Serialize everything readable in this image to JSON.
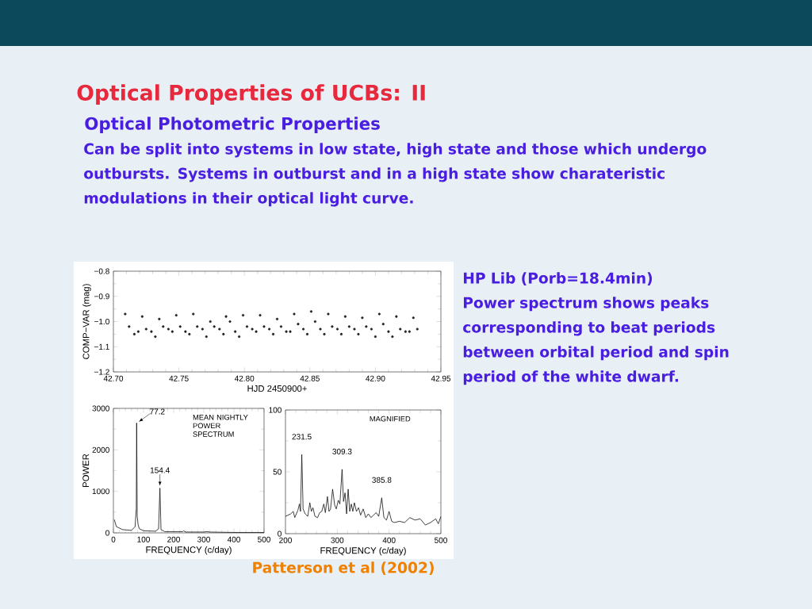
{
  "chart_data": [
    {
      "type": "scatter",
      "title": "Optical Properties of UCBs: II",
      "subtitle": "Optical Photometric Properties",
      "annotations": [
        "Can be split into systems in low state, high state and those which undergo outbursts. Systems in outburst and in a high state show charateristic modulations in their optical light curve.",
        "HP Lib (Porb=18.4min)",
        "Power spectrum shows peaks corresponding to beat periods between orbital period and spin period of the white dwarf.",
        "Patterson et al (2002)"
      ],
      "xlabel": "HJD  2450900+",
      "ylabel": "COMP−VAR  (mag)",
      "color": "#222222",
      "x": [
        42.709,
        42.712,
        42.716,
        42.719,
        42.722,
        42.725,
        42.729,
        42.732,
        42.735,
        42.738,
        42.742,
        42.745,
        42.748,
        42.751,
        42.755,
        42.758,
        42.761,
        42.764,
        42.768,
        42.771,
        42.774,
        42.777,
        42.781,
        42.784,
        42.786,
        42.789,
        42.793,
        42.796,
        42.799,
        42.802,
        42.806,
        42.809,
        42.812,
        42.815,
        42.819,
        42.822,
        42.825,
        42.828,
        42.832,
        42.835,
        42.838,
        42.841,
        42.845,
        42.848,
        42.851,
        42.854,
        42.858,
        42.861,
        42.864,
        42.867,
        42.871,
        42.874,
        42.877,
        42.88,
        42.884,
        42.887,
        42.89,
        42.893,
        42.897,
        42.9,
        42.903,
        42.906,
        42.91,
        42.913,
        42.916,
        42.919,
        42.923,
        42.926,
        42.929,
        42.932
      ],
      "values": [
        -0.97,
        -1.02,
        -1.05,
        -1.04,
        -0.98,
        -1.03,
        -1.04,
        -1.06,
        -0.99,
        -1.02,
        -1.03,
        -1.04,
        -0.975,
        -1.02,
        -1.04,
        -1.05,
        -0.97,
        -1.02,
        -1.03,
        -1.06,
        -1.0,
        -1.02,
        -1.03,
        -1.05,
        -0.98,
        -1.0,
        -1.04,
        -1.06,
        -0.975,
        -1.02,
        -1.03,
        -1.04,
        -0.975,
        -1.02,
        -1.03,
        -1.05,
        -0.99,
        -1.02,
        -1.04,
        -1.04,
        -0.97,
        -1.01,
        -1.03,
        -1.05,
        -0.96,
        -1.0,
        -1.03,
        -1.05,
        -0.97,
        -1.02,
        -1.03,
        -1.05,
        -0.98,
        -1.02,
        -1.03,
        -1.05,
        -0.985,
        -1.02,
        -1.03,
        -1.06,
        -0.97,
        -1.01,
        -1.04,
        -1.06,
        -0.98,
        -1.03,
        -1.04,
        -1.04,
        -0.985,
        -1.03
      ],
      "xlim": [
        42.7,
        42.95
      ],
      "xticks": [
        {
          "value": 42.7,
          "label": "42.70"
        },
        {
          "value": 42.75,
          "label": "42.75"
        },
        {
          "value": 42.8,
          "label": "42.80"
        },
        {
          "value": 42.85,
          "label": "42.85"
        },
        {
          "value": 42.9,
          "label": "42.90"
        },
        {
          "value": 42.95,
          "label": "42.95"
        }
      ],
      "ylim": [
        -1.2,
        -0.8
      ],
      "yticks": [
        {
          "value": -1.2,
          "label": "−1.2"
        },
        {
          "value": -1.1,
          "label": "−1.1"
        },
        {
          "value": -1.0,
          "label": "−1.0"
        },
        {
          "value": -0.9,
          "label": "−0.9"
        },
        {
          "value": -0.8,
          "label": "−0.8"
        }
      ]
    },
    {
      "type": "line",
      "xlabel": "FREQUENCY  (c/day)",
      "ylabel": "POWER",
      "color": "#111111",
      "annotations": [
        "MEAN NIGHTLY POWER SPECTRUM",
        {
          "text": "77.2",
          "x": 77.2,
          "y": 2650
        },
        {
          "text": "154.4",
          "x": 154.4,
          "y": 1080
        }
      ],
      "x": [
        3,
        10,
        30,
        60,
        72,
        76,
        77.2,
        79,
        82,
        86,
        100,
        140,
        150,
        154.4,
        158,
        170,
        230,
        233,
        240,
        300,
        310,
        320,
        400,
        500
      ],
      "values": [
        320,
        150,
        80,
        60,
        150,
        600,
        2650,
        400,
        200,
        100,
        50,
        40,
        100,
        1080,
        80,
        30,
        30,
        50,
        20,
        20,
        30,
        20,
        10,
        10
      ],
      "xlim": [
        0,
        500
      ],
      "xticks": [
        0,
        100,
        200,
        300,
        400,
        500
      ],
      "ylim": [
        0,
        3000
      ],
      "yticks": [
        0,
        1000,
        2000,
        3000
      ]
    },
    {
      "type": "line",
      "xlabel": "FREQUENCY  (c/day)",
      "color": "#111111",
      "annotations": [
        "MAGNIFIED",
        {
          "text": "231.5",
          "x": 231.5,
          "y": 64
        },
        {
          "text": "309.3",
          "x": 309.3,
          "y": 52
        },
        {
          "text": "385.8",
          "x": 385.8,
          "y": 29
        }
      ],
      "x": [
        200,
        210,
        215,
        218,
        224,
        227,
        229,
        231.5,
        234,
        238,
        243,
        247,
        250,
        253,
        257,
        262,
        266,
        270,
        274,
        277,
        281,
        284,
        287,
        291,
        295,
        298,
        302,
        305,
        309.3,
        312,
        315,
        318,
        321,
        324,
        327,
        330,
        333,
        337,
        341,
        345,
        350,
        355,
        360,
        365,
        370,
        375,
        380,
        385.8,
        390,
        395,
        400,
        405,
        410,
        420,
        430,
        440,
        450,
        460,
        470,
        480,
        490,
        495,
        500
      ],
      "values": [
        14,
        16,
        18,
        13,
        19,
        24,
        18,
        64,
        20,
        16,
        14,
        25,
        18,
        21,
        14,
        13,
        17,
        18,
        24,
        17,
        30,
        18,
        20,
        36,
        23,
        20,
        27,
        24,
        52,
        26,
        33,
        16,
        36,
        18,
        24,
        18,
        25,
        18,
        21,
        15,
        20,
        13,
        16,
        13,
        15,
        17,
        14,
        29,
        13,
        11,
        18,
        10,
        9,
        10,
        9,
        13,
        11,
        12,
        7,
        9,
        12,
        8,
        14
      ],
      "xlim": [
        200,
        500
      ],
      "xticks": [
        200,
        300,
        400,
        500
      ],
      "ylim": [
        0,
        100
      ],
      "yticks": [
        0,
        50,
        100
      ]
    }
  ]
}
